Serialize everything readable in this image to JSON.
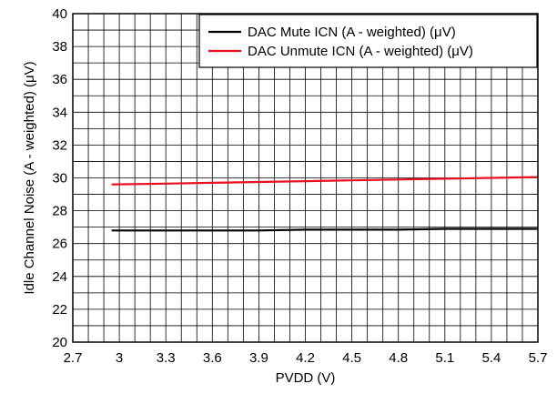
{
  "chart_data": {
    "type": "line",
    "xlabel": "PVDD (V)",
    "ylabel": "Idle Channel Noise (A - weighted) (μV)",
    "xlim": [
      2.7,
      5.7
    ],
    "ylim": [
      20,
      40
    ],
    "x_ticks": [
      "2.7",
      "3",
      "3.3",
      "3.6",
      "3.9",
      "4.2",
      "4.5",
      "4.8",
      "5.1",
      "5.4",
      "5.7"
    ],
    "x_tick_values": [
      2.7,
      3.0,
      3.3,
      3.6,
      3.9,
      4.2,
      4.5,
      4.8,
      5.1,
      5.4,
      5.7
    ],
    "y_ticks": [
      "20",
      "22",
      "24",
      "26",
      "28",
      "30",
      "32",
      "34",
      "36",
      "38",
      "40"
    ],
    "y_tick_values": [
      20,
      22,
      24,
      26,
      28,
      30,
      32,
      34,
      36,
      38,
      40
    ],
    "grid": true,
    "legend_position": "top-right",
    "series": [
      {
        "name": "DAC Mute ICN (A - weighted) (μV)",
        "color": "#000000",
        "x": [
          2.95,
          3.3,
          3.6,
          3.9,
          4.2,
          4.5,
          4.8,
          5.1,
          5.4,
          5.7
        ],
        "y": [
          26.8,
          26.8,
          26.8,
          26.8,
          26.85,
          26.85,
          26.85,
          26.9,
          26.9,
          26.9
        ]
      },
      {
        "name": "DAC Unmute ICN (A - weighted) (μV)",
        "color": "#e8101e",
        "x": [
          2.95,
          3.3,
          3.6,
          3.9,
          4.2,
          4.5,
          4.8,
          5.1,
          5.4,
          5.7
        ],
        "y": [
          29.6,
          29.65,
          29.7,
          29.75,
          29.8,
          29.85,
          29.9,
          29.95,
          30.0,
          30.05
        ]
      }
    ]
  }
}
